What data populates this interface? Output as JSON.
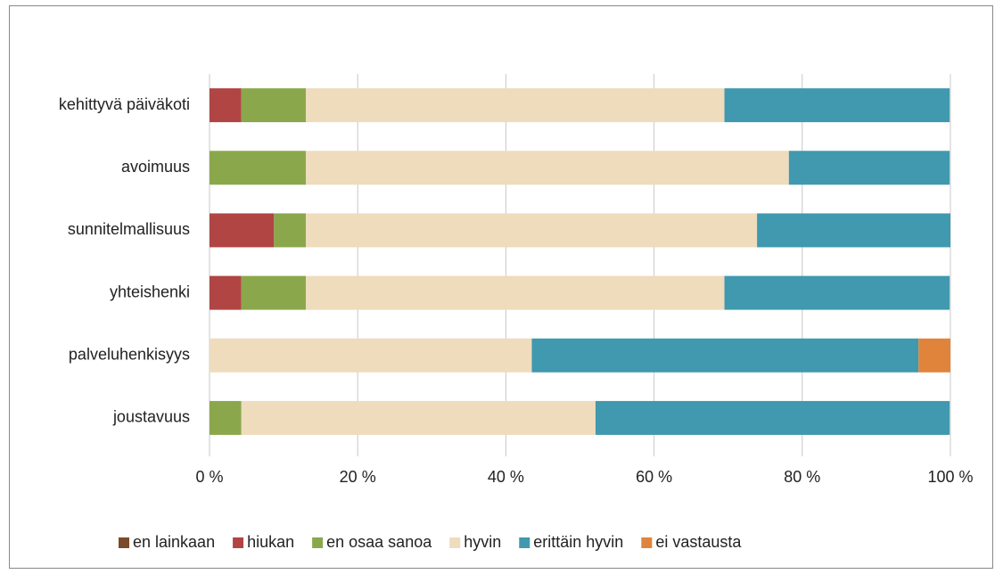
{
  "chart_data": {
    "type": "stacked-bar-horizontal",
    "categories": [
      "kehittyvä päiväkoti",
      "avoimuus",
      "sunnitelmallisuus",
      "yhteishenki",
      "palveluhenkisyys",
      "joustavuus"
    ],
    "series": [
      {
        "name": "en lainkaan",
        "color": "#7b4a2a",
        "values": [
          0,
          0,
          0,
          0,
          0,
          0
        ]
      },
      {
        "name": "hiukan",
        "color": "#b04544",
        "values": [
          4.3,
          0,
          8.7,
          4.3,
          0,
          0
        ]
      },
      {
        "name": "en osaa sanoa",
        "color": "#8aa84b",
        "values": [
          8.7,
          13.0,
          4.3,
          8.7,
          0,
          4.3
        ]
      },
      {
        "name": "hyvin",
        "color": "#eedcbd",
        "values": [
          56.5,
          65.2,
          60.9,
          56.5,
          43.5,
          47.8
        ]
      },
      {
        "name": "erittäin hyvin",
        "color": "#4099ae",
        "values": [
          30.4,
          21.7,
          26.1,
          30.4,
          52.2,
          47.8
        ]
      },
      {
        "name": "ei vastausta",
        "color": "#e0843c",
        "values": [
          0,
          0,
          0,
          0,
          4.3,
          0
        ]
      }
    ],
    "xlim": [
      0,
      100
    ],
    "xticks": [
      {
        "value": 0,
        "label": "0 %"
      },
      {
        "value": 20,
        "label": "20 %"
      },
      {
        "value": 40,
        "label": "40 %"
      },
      {
        "value": 60,
        "label": "60 %"
      },
      {
        "value": 80,
        "label": "80 %"
      },
      {
        "value": 100,
        "label": "100 %"
      }
    ],
    "grid": true,
    "legend": "bottom"
  }
}
